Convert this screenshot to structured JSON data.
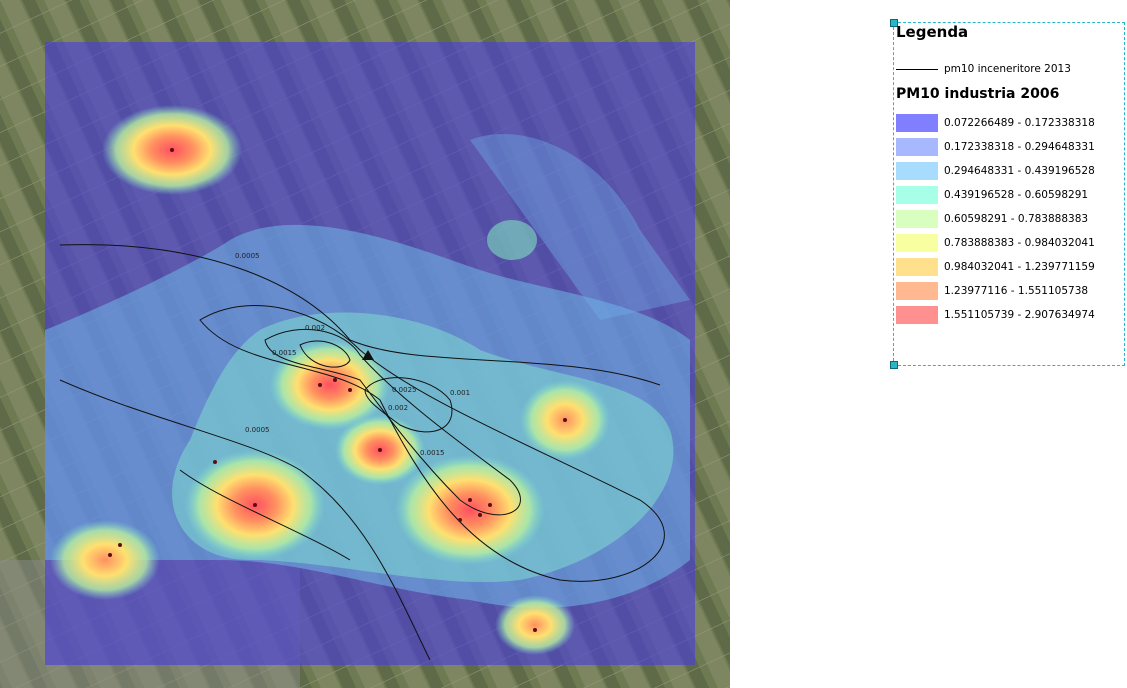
{
  "legend": {
    "title": "Legenda",
    "line_layer": "pm10 inceneritore 2013",
    "raster_layer": "PM10 industria 2006",
    "classes": [
      {
        "label": "0.072266489 - 0.172338318",
        "color": "#7f7fff"
      },
      {
        "label": "0.172338318 - 0.294648331",
        "color": "#a8b8ff"
      },
      {
        "label": "0.294648331 - 0.439196528",
        "color": "#a8dcff"
      },
      {
        "label": "0.439196528 - 0.60598291",
        "color": "#a8ffe8"
      },
      {
        "label": "0.60598291 - 0.783888383",
        "color": "#d8ffc0"
      },
      {
        "label": "0.783888383 - 0.984032041",
        "color": "#f8ffa0"
      },
      {
        "label": "0.984032041 - 1.239771159",
        "color": "#ffe08c"
      },
      {
        "label": "1.23977116 - 1.551105738",
        "color": "#ffb890"
      },
      {
        "label": "1.551105739 - 2.907634974",
        "color": "#ff9090"
      }
    ]
  },
  "contour_labels": [
    "0.0005",
    "0.002",
    "0.0015",
    "0.0025",
    "0.002",
    "0.0015",
    "0.0005",
    "0.001"
  ]
}
